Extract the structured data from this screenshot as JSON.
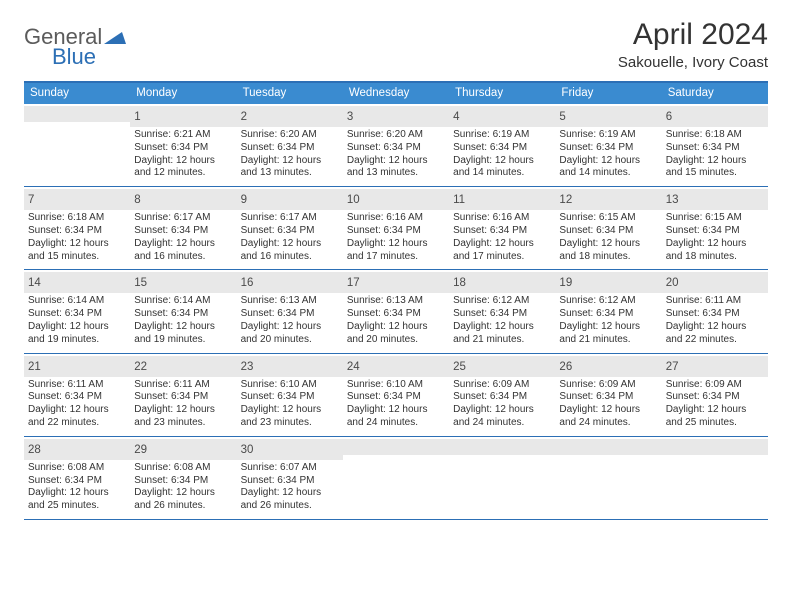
{
  "logo": {
    "word1": "General",
    "word2": "Blue",
    "brand_color": "#2c6fb5",
    "grey": "#5b5b5b"
  },
  "title": "April 2024",
  "location": "Sakouelle, Ivory Coast",
  "header_bg": "#3a8bd0",
  "border_color": "#2c6fb5",
  "day_num_bg": "#e8e8e8",
  "dow": [
    "Sunday",
    "Monday",
    "Tuesday",
    "Wednesday",
    "Thursday",
    "Friday",
    "Saturday"
  ],
  "weeks": [
    [
      null,
      {
        "n": "1",
        "sr": "Sunrise: 6:21 AM",
        "ss": "Sunset: 6:34 PM",
        "d1": "Daylight: 12 hours",
        "d2": "and 12 minutes."
      },
      {
        "n": "2",
        "sr": "Sunrise: 6:20 AM",
        "ss": "Sunset: 6:34 PM",
        "d1": "Daylight: 12 hours",
        "d2": "and 13 minutes."
      },
      {
        "n": "3",
        "sr": "Sunrise: 6:20 AM",
        "ss": "Sunset: 6:34 PM",
        "d1": "Daylight: 12 hours",
        "d2": "and 13 minutes."
      },
      {
        "n": "4",
        "sr": "Sunrise: 6:19 AM",
        "ss": "Sunset: 6:34 PM",
        "d1": "Daylight: 12 hours",
        "d2": "and 14 minutes."
      },
      {
        "n": "5",
        "sr": "Sunrise: 6:19 AM",
        "ss": "Sunset: 6:34 PM",
        "d1": "Daylight: 12 hours",
        "d2": "and 14 minutes."
      },
      {
        "n": "6",
        "sr": "Sunrise: 6:18 AM",
        "ss": "Sunset: 6:34 PM",
        "d1": "Daylight: 12 hours",
        "d2": "and 15 minutes."
      }
    ],
    [
      {
        "n": "7",
        "sr": "Sunrise: 6:18 AM",
        "ss": "Sunset: 6:34 PM",
        "d1": "Daylight: 12 hours",
        "d2": "and 15 minutes."
      },
      {
        "n": "8",
        "sr": "Sunrise: 6:17 AM",
        "ss": "Sunset: 6:34 PM",
        "d1": "Daylight: 12 hours",
        "d2": "and 16 minutes."
      },
      {
        "n": "9",
        "sr": "Sunrise: 6:17 AM",
        "ss": "Sunset: 6:34 PM",
        "d1": "Daylight: 12 hours",
        "d2": "and 16 minutes."
      },
      {
        "n": "10",
        "sr": "Sunrise: 6:16 AM",
        "ss": "Sunset: 6:34 PM",
        "d1": "Daylight: 12 hours",
        "d2": "and 17 minutes."
      },
      {
        "n": "11",
        "sr": "Sunrise: 6:16 AM",
        "ss": "Sunset: 6:34 PM",
        "d1": "Daylight: 12 hours",
        "d2": "and 17 minutes."
      },
      {
        "n": "12",
        "sr": "Sunrise: 6:15 AM",
        "ss": "Sunset: 6:34 PM",
        "d1": "Daylight: 12 hours",
        "d2": "and 18 minutes."
      },
      {
        "n": "13",
        "sr": "Sunrise: 6:15 AM",
        "ss": "Sunset: 6:34 PM",
        "d1": "Daylight: 12 hours",
        "d2": "and 18 minutes."
      }
    ],
    [
      {
        "n": "14",
        "sr": "Sunrise: 6:14 AM",
        "ss": "Sunset: 6:34 PM",
        "d1": "Daylight: 12 hours",
        "d2": "and 19 minutes."
      },
      {
        "n": "15",
        "sr": "Sunrise: 6:14 AM",
        "ss": "Sunset: 6:34 PM",
        "d1": "Daylight: 12 hours",
        "d2": "and 19 minutes."
      },
      {
        "n": "16",
        "sr": "Sunrise: 6:13 AM",
        "ss": "Sunset: 6:34 PM",
        "d1": "Daylight: 12 hours",
        "d2": "and 20 minutes."
      },
      {
        "n": "17",
        "sr": "Sunrise: 6:13 AM",
        "ss": "Sunset: 6:34 PM",
        "d1": "Daylight: 12 hours",
        "d2": "and 20 minutes."
      },
      {
        "n": "18",
        "sr": "Sunrise: 6:12 AM",
        "ss": "Sunset: 6:34 PM",
        "d1": "Daylight: 12 hours",
        "d2": "and 21 minutes."
      },
      {
        "n": "19",
        "sr": "Sunrise: 6:12 AM",
        "ss": "Sunset: 6:34 PM",
        "d1": "Daylight: 12 hours",
        "d2": "and 21 minutes."
      },
      {
        "n": "20",
        "sr": "Sunrise: 6:11 AM",
        "ss": "Sunset: 6:34 PM",
        "d1": "Daylight: 12 hours",
        "d2": "and 22 minutes."
      }
    ],
    [
      {
        "n": "21",
        "sr": "Sunrise: 6:11 AM",
        "ss": "Sunset: 6:34 PM",
        "d1": "Daylight: 12 hours",
        "d2": "and 22 minutes."
      },
      {
        "n": "22",
        "sr": "Sunrise: 6:11 AM",
        "ss": "Sunset: 6:34 PM",
        "d1": "Daylight: 12 hours",
        "d2": "and 23 minutes."
      },
      {
        "n": "23",
        "sr": "Sunrise: 6:10 AM",
        "ss": "Sunset: 6:34 PM",
        "d1": "Daylight: 12 hours",
        "d2": "and 23 minutes."
      },
      {
        "n": "24",
        "sr": "Sunrise: 6:10 AM",
        "ss": "Sunset: 6:34 PM",
        "d1": "Daylight: 12 hours",
        "d2": "and 24 minutes."
      },
      {
        "n": "25",
        "sr": "Sunrise: 6:09 AM",
        "ss": "Sunset: 6:34 PM",
        "d1": "Daylight: 12 hours",
        "d2": "and 24 minutes."
      },
      {
        "n": "26",
        "sr": "Sunrise: 6:09 AM",
        "ss": "Sunset: 6:34 PM",
        "d1": "Daylight: 12 hours",
        "d2": "and 24 minutes."
      },
      {
        "n": "27",
        "sr": "Sunrise: 6:09 AM",
        "ss": "Sunset: 6:34 PM",
        "d1": "Daylight: 12 hours",
        "d2": "and 25 minutes."
      }
    ],
    [
      {
        "n": "28",
        "sr": "Sunrise: 6:08 AM",
        "ss": "Sunset: 6:34 PM",
        "d1": "Daylight: 12 hours",
        "d2": "and 25 minutes."
      },
      {
        "n": "29",
        "sr": "Sunrise: 6:08 AM",
        "ss": "Sunset: 6:34 PM",
        "d1": "Daylight: 12 hours",
        "d2": "and 26 minutes."
      },
      {
        "n": "30",
        "sr": "Sunrise: 6:07 AM",
        "ss": "Sunset: 6:34 PM",
        "d1": "Daylight: 12 hours",
        "d2": "and 26 minutes."
      },
      null,
      null,
      null,
      null
    ]
  ]
}
